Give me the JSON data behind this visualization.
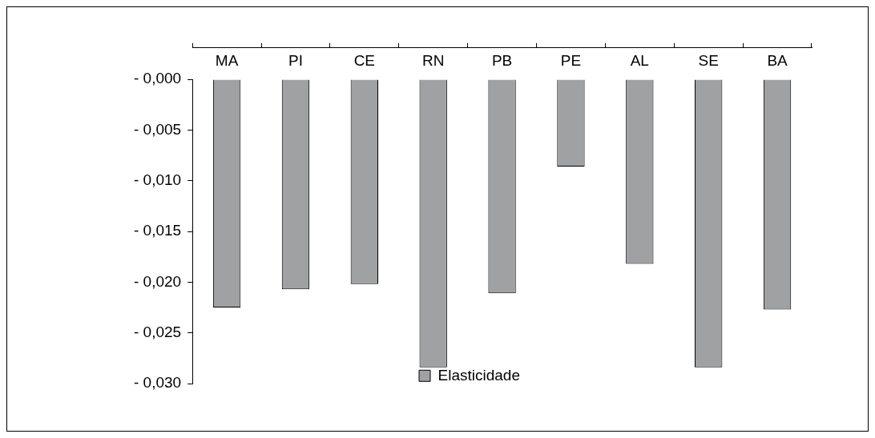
{
  "chart_data": {
    "type": "bar",
    "categories": [
      "MA",
      "PI",
      "CE",
      "RN",
      "PB",
      "PE",
      "AL",
      "SE",
      "BA"
    ],
    "series": [
      {
        "name": "Elasticidade",
        "color": "#a0a1a3",
        "values": [
          -0.0225,
          -0.0207,
          -0.0202,
          -0.0284,
          -0.0211,
          -0.0086,
          -0.0182,
          -0.0284,
          -0.0227
        ]
      }
    ],
    "ylim": [
      -0.03,
      0
    ],
    "yticks": [
      {
        "value": 0,
        "label": "- 0,000"
      },
      {
        "value": -0.005,
        "label": "- 0,005"
      },
      {
        "value": -0.01,
        "label": "- 0,010"
      },
      {
        "value": -0.015,
        "label": "- 0,015"
      },
      {
        "value": -0.02,
        "label": "- 0,020"
      },
      {
        "value": -0.025,
        "label": "- 0,025"
      },
      {
        "value": -0.03,
        "label": "- 0,030"
      }
    ],
    "legend": "bottom"
  }
}
